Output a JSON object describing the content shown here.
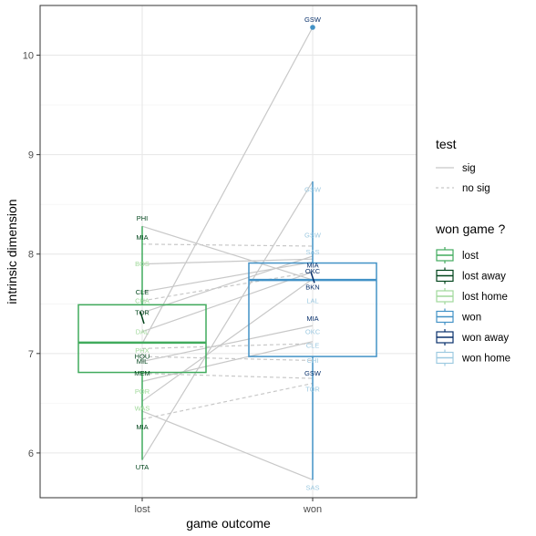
{
  "chart_data": {
    "type": "boxplot",
    "xlabel": "game outcome",
    "ylabel": "intrinsic dimension",
    "categories": [
      "lost",
      "won"
    ],
    "ylim": [
      5.55,
      10.5
    ],
    "yticks": [
      6,
      7,
      8,
      9,
      10
    ],
    "grid": true,
    "boxes": [
      {
        "category": "lost",
        "group": "lost",
        "color": "#41ab5d",
        "q1": 6.81,
        "median": 7.11,
        "q3": 7.49,
        "whisker_low": 5.93,
        "whisker_high": 8.28
      },
      {
        "category": "won",
        "group": "won",
        "color": "#4292c6",
        "q1": 6.97,
        "median": 7.74,
        "q3": 7.91,
        "whisker_low": 5.73,
        "whisker_high": 8.73
      }
    ],
    "outliers": [
      {
        "category": "won",
        "team": "GSW",
        "value": 10.28,
        "color": "#4292c6"
      }
    ],
    "mini_boxes": [
      {
        "category": "lost",
        "group": "lost away",
        "color": "#00441b",
        "low": 7.3,
        "high": 7.42
      },
      {
        "category": "won",
        "group": "won away",
        "color": "#08306b",
        "low": 7.71,
        "high": 7.82
      }
    ],
    "teams": [
      {
        "team": "PHI",
        "lost": 8.28,
        "won": 7.74,
        "test": "sig",
        "lost_venue": "away",
        "won_venue": "away"
      },
      {
        "team": "MIA",
        "lost": 8.1,
        "won": 8.08,
        "test": "no sig",
        "lost_venue": "away",
        "won_venue": "home"
      },
      {
        "team": "BOS",
        "lost": 7.9,
        "won": 7.95,
        "test": "sig",
        "lost_venue": "home",
        "won_venue": "home"
      },
      {
        "team": "CLE",
        "lost": 7.62,
        "won": 7.92,
        "test": "sig",
        "lost_venue": "away",
        "won_venue": "home"
      },
      {
        "team": "CHA",
        "lost": 7.53,
        "won": 7.82,
        "test": "no sig",
        "lost_venue": "home",
        "won_venue": "home"
      },
      {
        "team": "TOR",
        "lost": 7.41,
        "won": 7.98,
        "test": "sig",
        "lost_venue": "away",
        "won_venue": "home"
      },
      {
        "team": "DAL",
        "lost": 7.22,
        "won": 7.82,
        "test": "sig",
        "lost_venue": "home",
        "won_venue": "away"
      },
      {
        "team": "PHX",
        "lost": 7.05,
        "won": 7.1,
        "test": "no sig",
        "lost_venue": "home",
        "won_venue": "home"
      },
      {
        "team": "HOU",
        "lost": 6.97,
        "won": 6.93,
        "test": "no sig",
        "lost_venue": "away",
        "won_venue": "home"
      },
      {
        "team": "MIL",
        "lost": 6.92,
        "won": 7.28,
        "test": "sig",
        "lost_venue": "away",
        "won_venue": "away"
      },
      {
        "team": "MEM",
        "lost": 6.8,
        "won": 6.75,
        "test": "no sig",
        "lost_venue": "away",
        "won_venue": "away"
      },
      {
        "team": "POR",
        "lost": 6.72,
        "won": 7.12,
        "test": "sig",
        "lost_venue": "home",
        "won_venue": "home"
      },
      {
        "team": "WAS",
        "lost": 6.52,
        "won": 7.75,
        "test": "sig",
        "lost_venue": "home",
        "won_venue": "away"
      },
      {
        "team": "MIA",
        "lost": 6.34,
        "won": 6.7,
        "test": "no sig",
        "lost_venue": "away",
        "won_venue": "home"
      },
      {
        "team": "SAS",
        "lost": 6.42,
        "won": 5.73,
        "test": "sig",
        "lost_venue": "away",
        "won_venue": "home"
      },
      {
        "team": "UTA",
        "lost": 5.93,
        "won": 8.73,
        "test": "sig",
        "lost_venue": "away",
        "won_venue": "home"
      },
      {
        "team": "GSW",
        "lost": 7.1,
        "won": 10.28,
        "test": "sig",
        "lost_venue": "away",
        "won_venue": "away"
      }
    ],
    "labels": [
      {
        "category": "lost",
        "text": "PHI",
        "value": 8.36,
        "color": "#00441b"
      },
      {
        "category": "lost",
        "text": "MIA",
        "value": 8.17,
        "color": "#00441b"
      },
      {
        "category": "lost",
        "text": "BOS",
        "value": 7.9,
        "color": "#a1d99b"
      },
      {
        "category": "lost",
        "text": "CLE",
        "value": 7.62,
        "color": "#00441b"
      },
      {
        "category": "lost",
        "text": "CHA",
        "value": 7.53,
        "color": "#a1d99b"
      },
      {
        "category": "lost",
        "text": "TOR",
        "value": 7.41,
        "color": "#00441b"
      },
      {
        "category": "lost",
        "text": "DAL",
        "value": 7.22,
        "color": "#a1d99b"
      },
      {
        "category": "lost",
        "text": "PHX",
        "value": 7.03,
        "color": "#a1d99b"
      },
      {
        "category": "lost",
        "text": "HOU",
        "value": 6.97,
        "color": "#00441b"
      },
      {
        "category": "lost",
        "text": "MIL",
        "value": 6.92,
        "color": "#00441b"
      },
      {
        "category": "lost",
        "text": "MEM",
        "value": 6.8,
        "color": "#00441b"
      },
      {
        "category": "lost",
        "text": "POR",
        "value": 6.62,
        "color": "#a1d99b"
      },
      {
        "category": "lost",
        "text": "WAS",
        "value": 6.45,
        "color": "#a1d99b"
      },
      {
        "category": "lost",
        "text": "MIA",
        "value": 6.26,
        "color": "#00441b"
      },
      {
        "category": "lost",
        "text": "UTA",
        "value": 5.86,
        "color": "#00441b"
      },
      {
        "category": "won",
        "text": "GSW",
        "value": 10.36,
        "color": "#08306b"
      },
      {
        "category": "won",
        "text": "GSW",
        "value": 8.65,
        "color": "#9ecae1"
      },
      {
        "category": "won",
        "text": "GSW",
        "value": 8.19,
        "color": "#9ecae1"
      },
      {
        "category": "won",
        "text": "SAS",
        "value": 8.02,
        "color": "#9ecae1"
      },
      {
        "category": "won",
        "text": "MIA",
        "value": 7.89,
        "color": "#08306b"
      },
      {
        "category": "won",
        "text": "OKC",
        "value": 7.83,
        "color": "#08306b"
      },
      {
        "category": "won",
        "text": "BKN",
        "value": 7.67,
        "color": "#08306b"
      },
      {
        "category": "won",
        "text": "LAL",
        "value": 7.53,
        "color": "#9ecae1"
      },
      {
        "category": "won",
        "text": "MIA",
        "value": 7.35,
        "color": "#08306b"
      },
      {
        "category": "won",
        "text": "OKC",
        "value": 7.22,
        "color": "#9ecae1"
      },
      {
        "category": "won",
        "text": "CLE",
        "value": 7.08,
        "color": "#9ecae1"
      },
      {
        "category": "won",
        "text": "CHI",
        "value": 6.93,
        "color": "#9ecae1"
      },
      {
        "category": "won",
        "text": "GSW",
        "value": 6.8,
        "color": "#08306b"
      },
      {
        "category": "won",
        "text": "TOR",
        "value": 6.64,
        "color": "#9ecae1"
      },
      {
        "category": "won",
        "text": "SAS",
        "value": 5.65,
        "color": "#9ecae1"
      }
    ],
    "legend": {
      "placement": "right",
      "test": {
        "title": "test",
        "items": [
          {
            "label": "sig",
            "style": "solid"
          },
          {
            "label": "no sig",
            "style": "dashed"
          }
        ]
      },
      "won_game": {
        "title": "won game ?",
        "items": [
          {
            "label": "lost",
            "color": "#41ab5d"
          },
          {
            "label": "lost away",
            "color": "#00441b"
          },
          {
            "label": "lost home",
            "color": "#a1d99b"
          },
          {
            "label": "won",
            "color": "#4292c6"
          },
          {
            "label": "won away",
            "color": "#08306b"
          },
          {
            "label": "won home",
            "color": "#9ecae1"
          }
        ]
      }
    }
  }
}
